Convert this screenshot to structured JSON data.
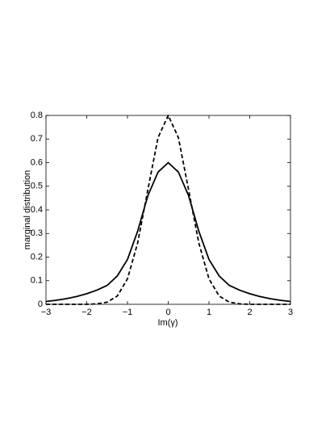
{
  "chart_data": {
    "type": "line",
    "xlabel": "Im(γ)",
    "ylabel": "marginal distribution",
    "x": [
      -3,
      -2.75,
      -2.5,
      -2.25,
      -2,
      -1.75,
      -1.5,
      -1.25,
      -1,
      -0.75,
      -0.5,
      -0.25,
      0,
      0.25,
      0.5,
      0.75,
      1,
      1.25,
      1.5,
      1.75,
      2,
      2.25,
      2.5,
      2.75,
      3
    ],
    "series": [
      {
        "color": "#000000",
        "dashed": false,
        "values": [
          0.012,
          0.017,
          0.024,
          0.033,
          0.045,
          0.06,
          0.08,
          0.12,
          0.19,
          0.31,
          0.46,
          0.56,
          0.6,
          0.56,
          0.46,
          0.31,
          0.19,
          0.12,
          0.08,
          0.06,
          0.045,
          0.033,
          0.024,
          0.017,
          0.012
        ]
      },
      {
        "color": "#000000",
        "dashed": true,
        "values": [
          0,
          0,
          0,
          0,
          0,
          0.002,
          0.009,
          0.035,
          0.108,
          0.26,
          0.485,
          0.706,
          0.8,
          0.706,
          0.485,
          0.26,
          0.108,
          0.035,
          0.009,
          0.002,
          0,
          0,
          0,
          0,
          0
        ]
      }
    ],
    "xlim": [
      -3,
      3
    ],
    "xticks": [
      {
        "value": -3,
        "label": "−3"
      },
      {
        "value": -2,
        "label": "−2"
      },
      {
        "value": -1,
        "label": "−1"
      },
      0,
      1,
      2,
      3
    ],
    "ylim": [
      0,
      0.8
    ],
    "yticks": [
      0,
      0.1,
      0.2,
      0.3,
      0.4,
      0.5,
      0.6,
      0.7,
      0.8
    ],
    "grid": false
  }
}
